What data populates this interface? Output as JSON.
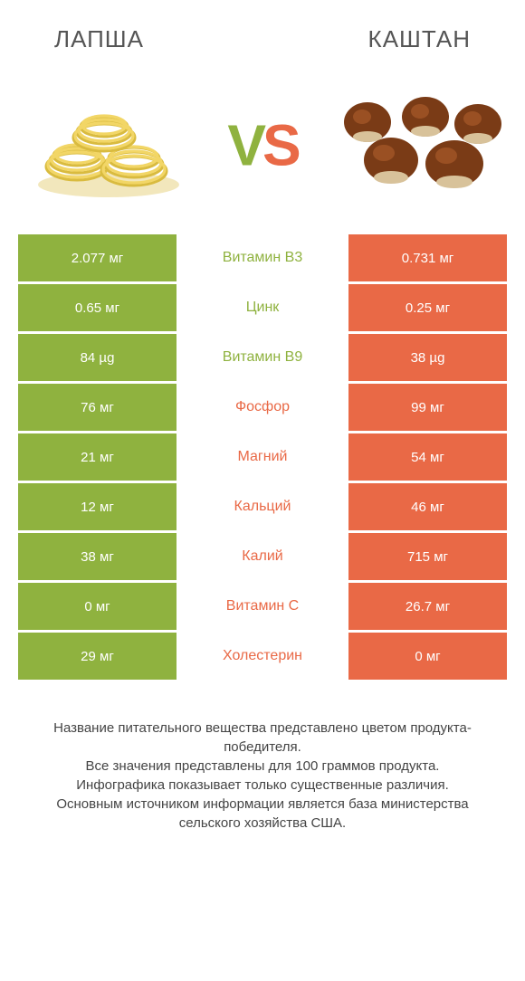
{
  "colors": {
    "left": "#8fb23f",
    "right": "#e96946",
    "title": "#555555",
    "footer": "#444444",
    "noodle_body": "#f2d666",
    "noodle_shadow": "#d9bb3f",
    "chestnut_body": "#7a3b16",
    "chestnut_highlight": "#a85a2a",
    "chestnut_base": "#d8c29a"
  },
  "header": {
    "left_title": "ЛАПША",
    "right_title": "КАШТАН"
  },
  "vs": {
    "v": "V",
    "s": "S"
  },
  "rows": [
    {
      "left": "2.077 мг",
      "label": "Витамин B3",
      "right": "0.731 мг",
      "winner": "left"
    },
    {
      "left": "0.65 мг",
      "label": "Цинк",
      "right": "0.25 мг",
      "winner": "left"
    },
    {
      "left": "84 µg",
      "label": "Витамин B9",
      "right": "38 µg",
      "winner": "left"
    },
    {
      "left": "76 мг",
      "label": "Фосфор",
      "right": "99 мг",
      "winner": "right"
    },
    {
      "left": "21 мг",
      "label": "Магний",
      "right": "54 мг",
      "winner": "right"
    },
    {
      "left": "12 мг",
      "label": "Кальций",
      "right": "46 мг",
      "winner": "right"
    },
    {
      "left": "38 мг",
      "label": "Калий",
      "right": "715 мг",
      "winner": "right"
    },
    {
      "left": "0 мг",
      "label": "Витамин C",
      "right": "26.7 мг",
      "winner": "right"
    },
    {
      "left": "29 мг",
      "label": "Холестерин",
      "right": "0 мг",
      "winner": "right"
    }
  ],
  "footer_lines": [
    "Название питательного вещества представлено цветом продукта-победителя.",
    "Все значения представлены для 100 граммов продукта.",
    "Инфографика показывает только существенные различия.",
    "Основным источником информации является база министерства сельского хозяйства США."
  ]
}
